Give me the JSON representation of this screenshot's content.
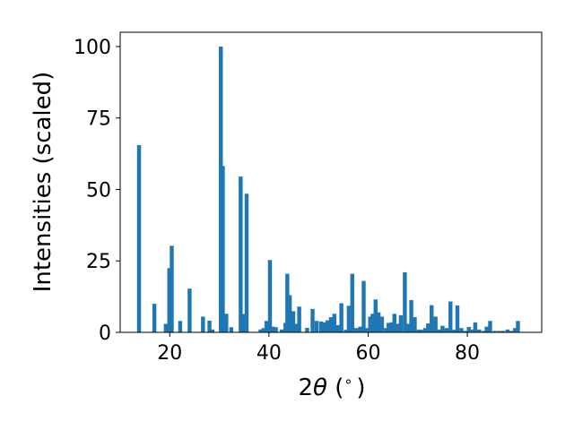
{
  "colors": {
    "bar": "#1f77b4",
    "axis": "#000000",
    "background": "#ffffff"
  },
  "chart_data": {
    "type": "bar",
    "xlabel": "2θ (°)",
    "xlabel_parts": {
      "prefix": "2",
      "symbol": "θ",
      "suffix": " (",
      "degree": "∘",
      "close": ")"
    },
    "ylabel": "Intensities (scaled)",
    "xlim": [
      10,
      95
    ],
    "ylim": [
      0,
      105
    ],
    "xticks": [
      20,
      40,
      60,
      80
    ],
    "yticks": [
      0,
      25,
      50,
      75,
      100
    ],
    "xtick_labels": [
      "20",
      "40",
      "60",
      "80"
    ],
    "ytick_labels": [
      "0",
      "25",
      "50",
      "75",
      "100"
    ],
    "bar_width": 0.8,
    "grid": false,
    "legend": "none",
    "x": [
      13.8,
      16.9,
      19.2,
      19.9,
      20.4,
      22.1,
      24.0,
      26.7,
      28.0,
      28.6,
      30.3,
      30.7,
      31.4,
      32.4,
      34.3,
      34.8,
      35.5,
      38.3,
      38.9,
      39.5,
      40.2,
      40.8,
      41.4,
      42.6,
      43.3,
      43.7,
      44.2,
      44.9,
      45.4,
      46.1,
      47.7,
      48.8,
      49.6,
      50.5,
      51.1,
      51.8,
      52.5,
      53.2,
      53.9,
      54.6,
      55.5,
      56.1,
      56.8,
      57.6,
      58.4,
      59.1,
      59.8,
      60.4,
      60.9,
      61.5,
      62.1,
      62.8,
      63.6,
      64.1,
      64.7,
      65.3,
      65.9,
      66.6,
      67.4,
      68.0,
      68.7,
      69.4,
      70.2,
      70.9,
      71.5,
      72.1,
      72.8,
      73.6,
      74.3,
      75.0,
      75.8,
      76.6,
      77.3,
      78.0,
      78.8,
      79.5,
      80.3,
      80.9,
      81.6,
      82.4,
      83.3,
      83.9,
      84.6,
      85.5,
      86.4,
      87.2,
      88.1,
      88.9,
      89.6,
      90.2
    ],
    "values": [
      65.5,
      10,
      3,
      22.5,
      30.3,
      4,
      15.3,
      5.5,
      4.1,
      1,
      100,
      58.2,
      6.5,
      1.8,
      54.5,
      6.4,
      48.5,
      1,
      1.5,
      4,
      25.3,
      2,
      1.8,
      1,
      3.3,
      20.5,
      13,
      7.4,
      3,
      9,
      1.6,
      8.2,
      4,
      3.8,
      3.5,
      4.2,
      5.3,
      6.5,
      2.5,
      10.2,
      0.9,
      9.3,
      20.5,
      1.5,
      2,
      18,
      1.5,
      5.5,
      6.5,
      11.5,
      7,
      5.5,
      1.5,
      3.3,
      3.5,
      6.5,
      3,
      6,
      21,
      3,
      11.3,
      5.3,
      1,
      0.9,
      1.5,
      3.1,
      9.5,
      5.5,
      1,
      2.3,
      1.5,
      10.8,
      0.9,
      9.4,
      1.5,
      0.5,
      1.9,
      1,
      3.5,
      1,
      0.5,
      2,
      4,
      0.5,
      0.5,
      0.5,
      1,
      0.5,
      1.5,
      4
    ]
  }
}
